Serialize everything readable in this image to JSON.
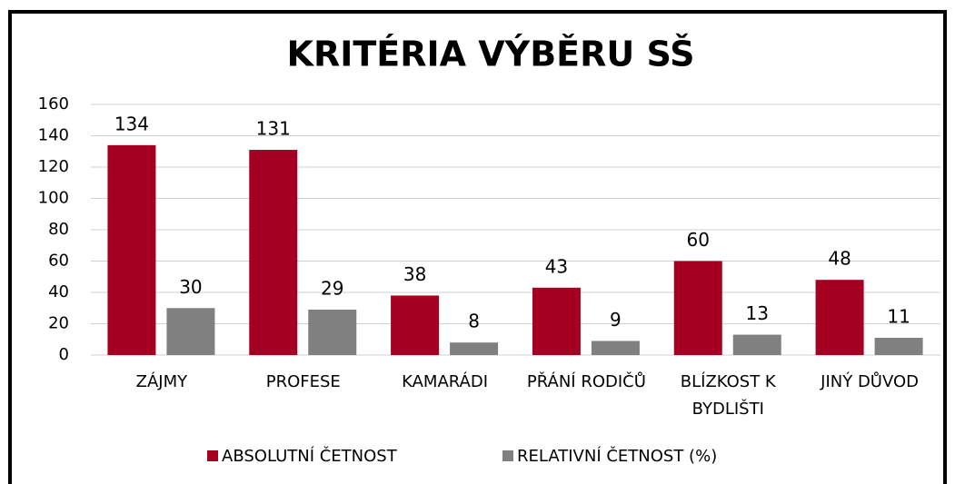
{
  "chart_data": {
    "type": "bar",
    "title": "KRITÉRIA VÝBĚRU SŠ",
    "categories": [
      "ZÁJMY",
      "PROFESE",
      "KAMARÁDI",
      "PŘÁNÍ RODIČŮ",
      "BLÍZKOST K BYDLIŠTI",
      "JINÝ DŮVOD"
    ],
    "series": [
      {
        "name": "ABSOLUTNÍ ČETNOST",
        "color": "#a50021",
        "values": [
          134,
          131,
          38,
          43,
          60,
          48
        ]
      },
      {
        "name": "RELATIVNÍ ČETNOST (%)",
        "color": "#808080",
        "values": [
          30,
          29,
          8,
          9,
          13,
          11
        ]
      }
    ],
    "ylim": [
      0,
      160
    ],
    "yticks": [
      0,
      20,
      40,
      60,
      80,
      100,
      120,
      140,
      160
    ],
    "grid": true,
    "legend": "bottom"
  }
}
